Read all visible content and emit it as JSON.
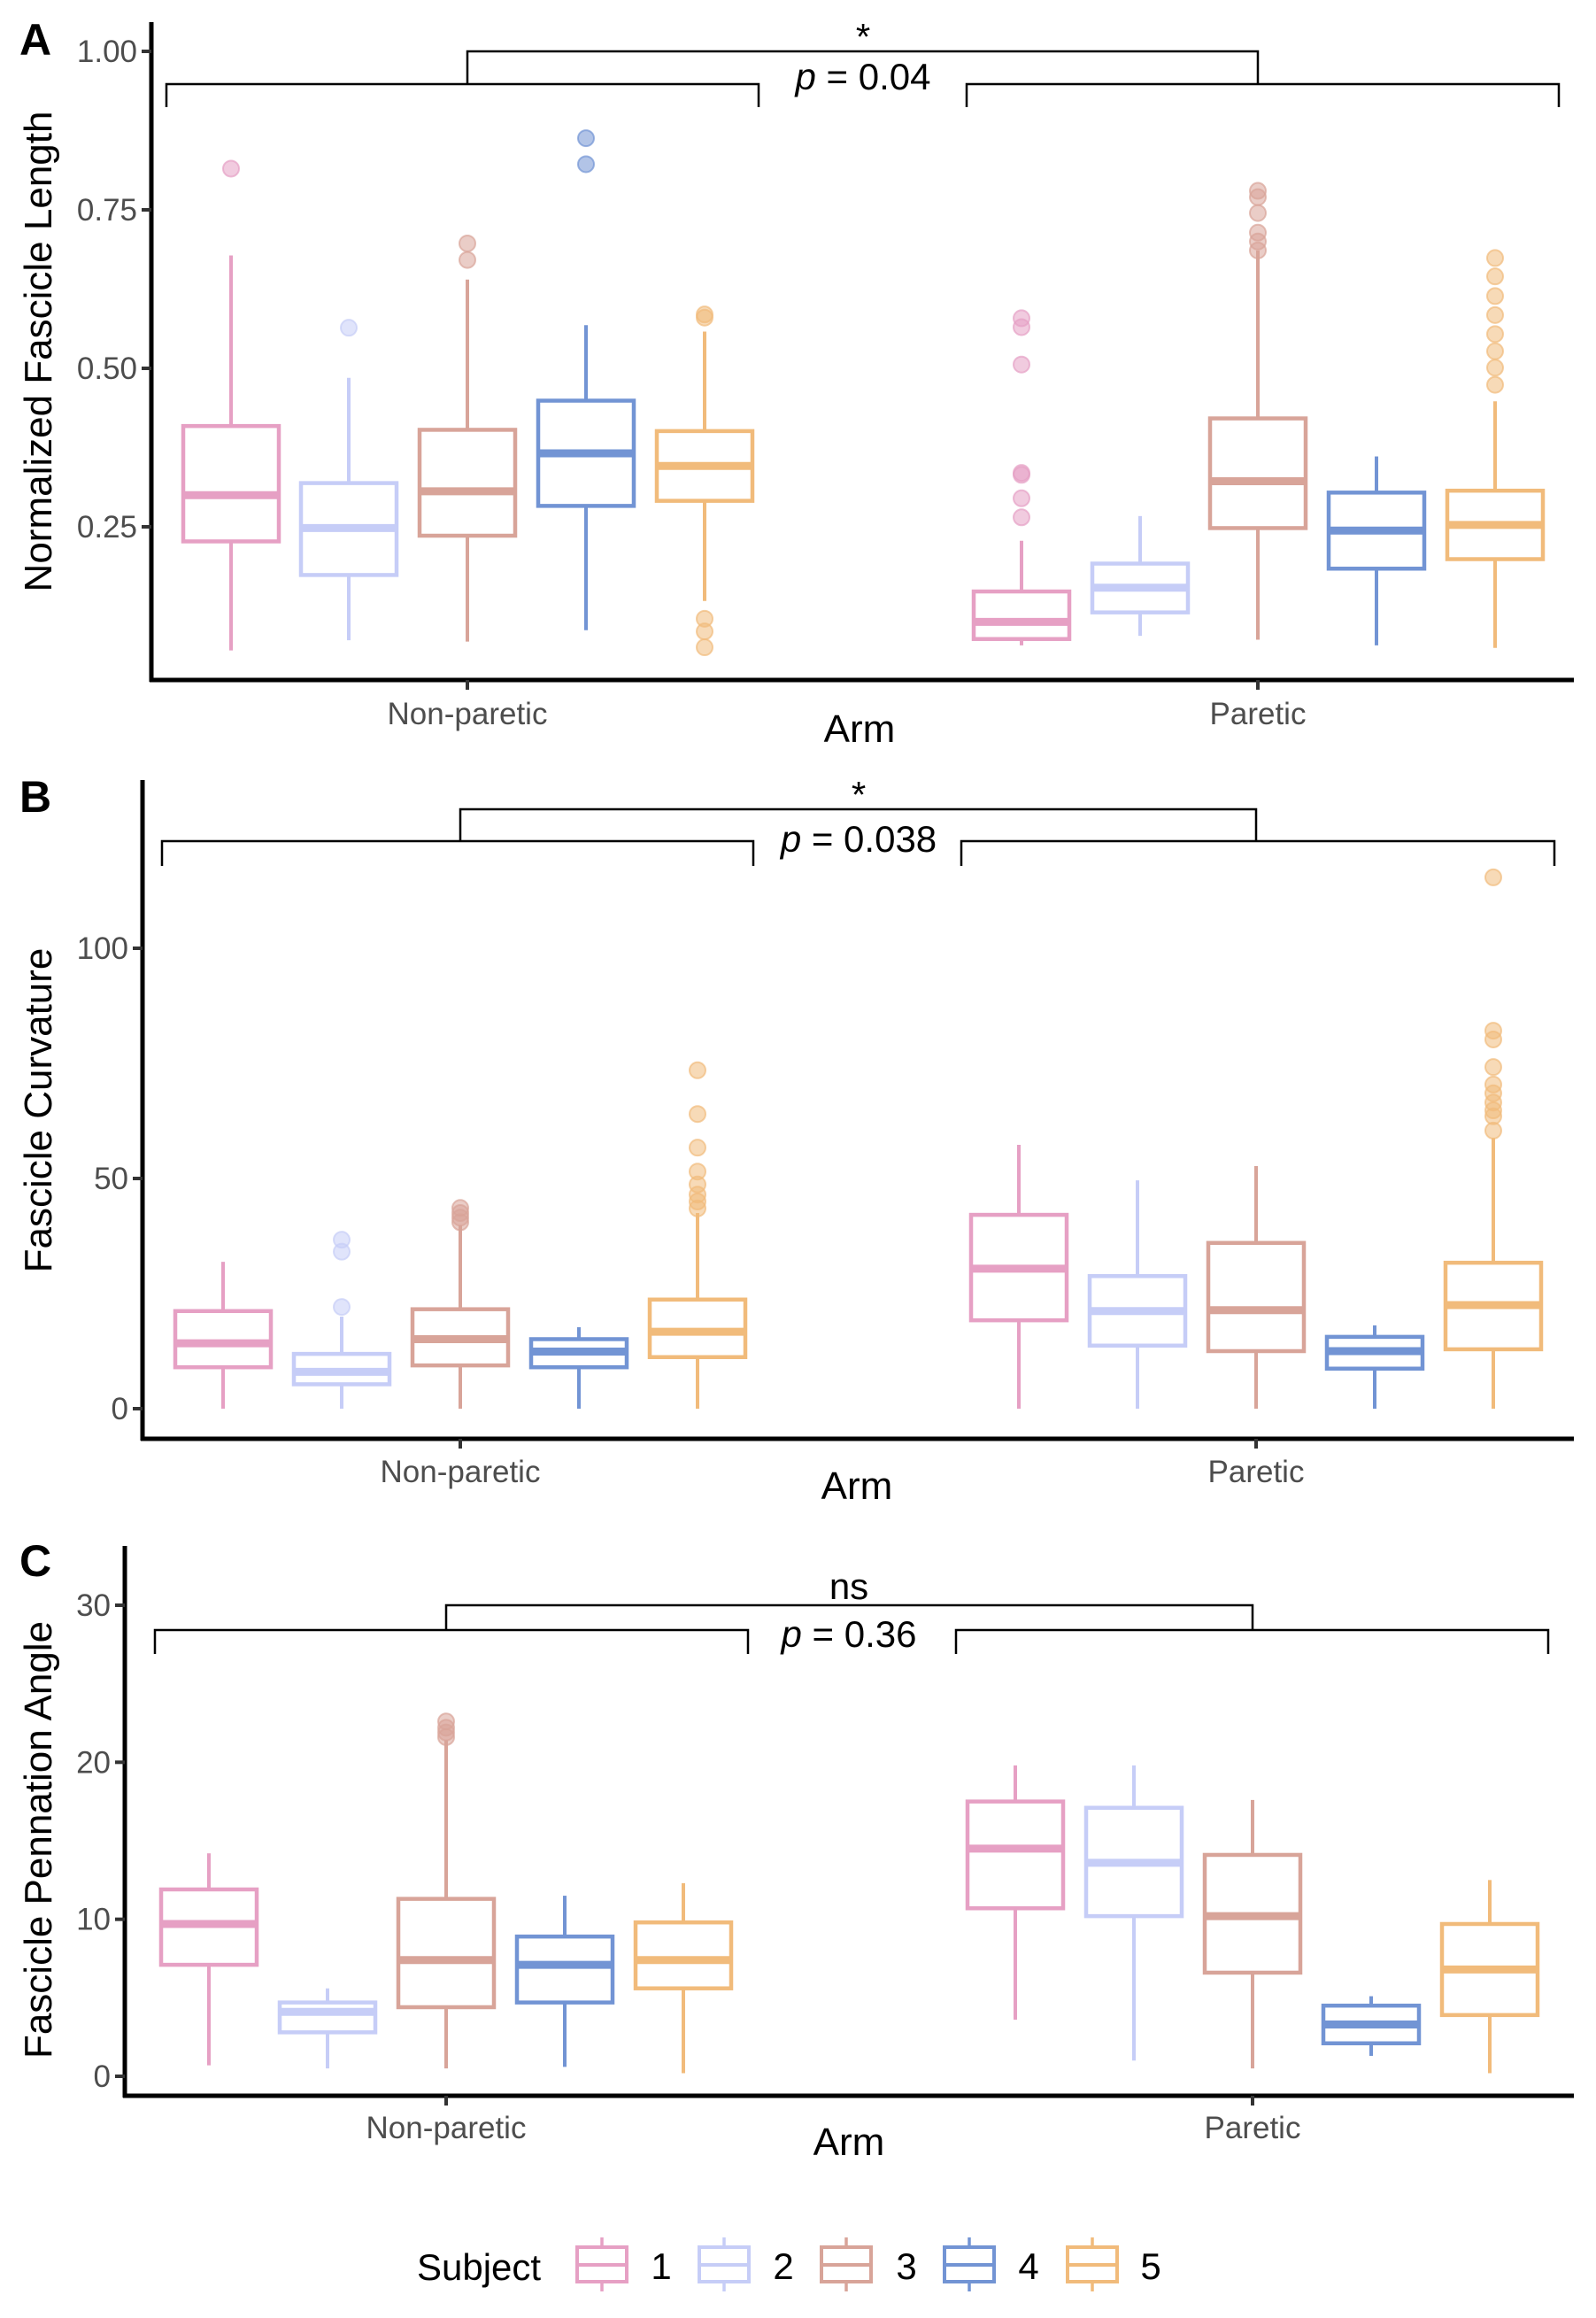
{
  "figure": {
    "legend": {
      "title": "Subject",
      "entries": [
        {
          "label": "1",
          "color": "#E6A0C4"
        },
        {
          "label": "2",
          "color": "#C6CDF7"
        },
        {
          "label": "3",
          "color": "#D8A499"
        },
        {
          "label": "4",
          "color": "#7294D4"
        },
        {
          "label": "5",
          "color": "#F1BB7B"
        }
      ]
    }
  },
  "chart_data": [
    {
      "panel": "A",
      "type": "boxplot",
      "title": "",
      "xlabel": "Arm",
      "ylabel": "Normalized Fascicle Length",
      "categories": [
        "Non-paretic",
        "Paretic"
      ],
      "yticks": [
        0.25,
        0.5,
        0.75,
        1.0
      ],
      "ytick_labels": [
        "0.25",
        "0.50",
        "0.75",
        "1.00"
      ],
      "ylim": [
        0.0,
        1.05
      ],
      "comparison": {
        "groups": [
          "Non-paretic",
          "Paretic"
        ],
        "significance": "*",
        "p_prefix": "p",
        "p_text": " = 0.04",
        "p_value": 0.04
      },
      "series": [
        {
          "name": "1",
          "groups": [
            {
              "category": "Non-paretic",
              "whisker_low": 0.055,
              "q1": 0.227,
              "median": 0.3,
              "q3": 0.409,
              "whisker_high": 0.678,
              "outliers": [
                0.815
              ]
            },
            {
              "category": "Paretic",
              "whisker_low": 0.063,
              "q1": 0.073,
              "median": 0.1,
              "q3": 0.148,
              "whisker_high": 0.228,
              "outliers": [
                0.265,
                0.295,
                0.332,
                0.335,
                0.506,
                0.565,
                0.579
              ]
            }
          ]
        },
        {
          "name": "2",
          "groups": [
            {
              "category": "Non-paretic",
              "whisker_low": 0.071,
              "q1": 0.174,
              "median": 0.248,
              "q3": 0.319,
              "whisker_high": 0.485,
              "outliers": [
                0.564
              ]
            },
            {
              "category": "Paretic",
              "whisker_low": 0.078,
              "q1": 0.115,
              "median": 0.154,
              "q3": 0.192,
              "whisker_high": 0.267,
              "outliers": []
            }
          ]
        },
        {
          "name": "3",
          "groups": [
            {
              "category": "Non-paretic",
              "whisker_low": 0.069,
              "q1": 0.236,
              "median": 0.306,
              "q3": 0.403,
              "whisker_high": 0.64,
              "outliers": [
                0.671,
                0.697
              ]
            },
            {
              "category": "Paretic",
              "whisker_low": 0.072,
              "q1": 0.248,
              "median": 0.322,
              "q3": 0.421,
              "whisker_high": 0.686,
              "outliers": [
                0.686,
                0.7,
                0.714,
                0.745,
                0.77,
                0.78
              ]
            }
          ]
        },
        {
          "name": "4",
          "groups": [
            {
              "category": "Non-paretic",
              "whisker_low": 0.087,
              "q1": 0.283,
              "median": 0.366,
              "q3": 0.449,
              "whisker_high": 0.568,
              "outliers": [
                0.822,
                0.863
              ]
            },
            {
              "category": "Paretic",
              "whisker_low": 0.063,
              "q1": 0.184,
              "median": 0.244,
              "q3": 0.304,
              "whisker_high": 0.361,
              "outliers": []
            }
          ]
        },
        {
          "name": "5",
          "groups": [
            {
              "category": "Non-paretic",
              "whisker_low": 0.133,
              "q1": 0.291,
              "median": 0.346,
              "q3": 0.401,
              "whisker_high": 0.558,
              "outliers": [
                0.06,
                0.085,
                0.105,
                0.58,
                0.585
              ]
            },
            {
              "category": "Paretic",
              "whisker_low": 0.059,
              "q1": 0.199,
              "median": 0.253,
              "q3": 0.307,
              "whisker_high": 0.448,
              "outliers": [
                0.474,
                0.501,
                0.527,
                0.554,
                0.584,
                0.614,
                0.645,
                0.674
              ]
            }
          ]
        }
      ]
    },
    {
      "panel": "B",
      "type": "boxplot",
      "title": "",
      "xlabel": "Arm",
      "ylabel": "Fascicle Curvature",
      "categories": [
        "Non-paretic",
        "Paretic"
      ],
      "yticks": [
        0,
        50,
        100
      ],
      "ytick_labels": [
        "0",
        "50",
        "100"
      ],
      "ylim": [
        -7,
        136
      ],
      "comparison": {
        "groups": [
          "Non-paretic",
          "Paretic"
        ],
        "significance": "*",
        "p_prefix": "p",
        "p_text": " = 0.038",
        "p_value": 0.038
      },
      "series": [
        {
          "name": "1",
          "groups": [
            {
              "category": "Non-paretic",
              "whisker_low": 0,
              "q1": 9.0,
              "median": 14.2,
              "q3": 21.2,
              "whisker_high": 31.9,
              "outliers": []
            },
            {
              "category": "Paretic",
              "whisker_low": 0,
              "q1": 19.2,
              "median": 30.4,
              "q3": 42.1,
              "whisker_high": 57.3,
              "outliers": []
            }
          ]
        },
        {
          "name": "2",
          "groups": [
            {
              "category": "Non-paretic",
              "whisker_low": 0,
              "q1": 5.3,
              "median": 8.0,
              "q3": 11.9,
              "whisker_high": 20.0,
              "outliers": [
                22.1,
                34.1,
                36.7
              ]
            },
            {
              "category": "Paretic",
              "whisker_low": 0,
              "q1": 13.7,
              "median": 21.2,
              "q3": 28.8,
              "whisker_high": 49.6,
              "outliers": []
            }
          ]
        },
        {
          "name": "3",
          "groups": [
            {
              "category": "Non-paretic",
              "whisker_low": 0,
              "q1": 9.4,
              "median": 15.1,
              "q3": 21.6,
              "whisker_high": 39.8,
              "outliers": [
                40.5,
                41.5,
                42.5,
                43.6
              ]
            },
            {
              "category": "Paretic",
              "whisker_low": 0,
              "q1": 12.5,
              "median": 21.4,
              "q3": 36.0,
              "whisker_high": 52.7,
              "outliers": []
            }
          ]
        },
        {
          "name": "4",
          "groups": [
            {
              "category": "Non-paretic",
              "whisker_low": 0,
              "q1": 9.0,
              "median": 12.4,
              "q3": 15.1,
              "whisker_high": 17.7,
              "outliers": []
            },
            {
              "category": "Paretic",
              "whisker_low": 0,
              "q1": 8.7,
              "median": 12.5,
              "q3": 15.6,
              "whisker_high": 18.1,
              "outliers": []
            }
          ]
        },
        {
          "name": "5",
          "groups": [
            {
              "category": "Non-paretic",
              "whisker_low": 0,
              "q1": 11.2,
              "median": 16.7,
              "q3": 23.7,
              "whisker_high": 42.5,
              "outliers": [
                43.5,
                45.0,
                46.5,
                48.7,
                51.5,
                56.7,
                64.0,
                73.5
              ]
            },
            {
              "category": "Paretic",
              "whisker_low": 0,
              "q1": 12.9,
              "median": 22.5,
              "q3": 31.7,
              "whisker_high": 58.8,
              "outliers": [
                60.4,
                63.5,
                64.8,
                66.5,
                68.5,
                70.4,
                74.2,
                80.2,
                82.1,
                115.4
              ]
            }
          ]
        }
      ]
    },
    {
      "panel": "C",
      "type": "boxplot",
      "title": "",
      "xlabel": "Arm",
      "ylabel": "Fascicle Pennation Angle",
      "categories": [
        "Non-paretic",
        "Paretic"
      ],
      "yticks": [
        0,
        10,
        20,
        30
      ],
      "ytick_labels": [
        "0",
        "10",
        "20",
        "30"
      ],
      "ylim": [
        -1.2,
        33.8
      ],
      "comparison": {
        "groups": [
          "Non-paretic",
          "Paretic"
        ],
        "significance": "ns",
        "p_prefix": "p",
        "p_text": " = 0.36",
        "p_value": 0.36
      },
      "series": [
        {
          "name": "1",
          "groups": [
            {
              "category": "Non-paretic",
              "whisker_low": 0.7,
              "q1": 7.1,
              "median": 9.7,
              "q3": 11.9,
              "whisker_high": 14.2,
              "outliers": []
            },
            {
              "category": "Paretic",
              "whisker_low": 3.6,
              "q1": 10.7,
              "median": 14.5,
              "q3": 17.5,
              "whisker_high": 19.8,
              "outliers": []
            }
          ]
        },
        {
          "name": "2",
          "groups": [
            {
              "category": "Non-paretic",
              "whisker_low": 0.5,
              "q1": 2.8,
              "median": 4.1,
              "q3": 4.7,
              "whisker_high": 5.6,
              "outliers": []
            },
            {
              "category": "Paretic",
              "whisker_low": 1.0,
              "q1": 10.2,
              "median": 13.6,
              "q3": 17.1,
              "whisker_high": 19.8,
              "outliers": []
            }
          ]
        },
        {
          "name": "3",
          "groups": [
            {
              "category": "Non-paretic",
              "whisker_low": 0.5,
              "q1": 4.4,
              "median": 7.4,
              "q3": 11.3,
              "whisker_high": 21.4,
              "outliers": [
                21.6,
                21.9,
                22.2,
                22.6
              ]
            },
            {
              "category": "Paretic",
              "whisker_low": 0.5,
              "q1": 6.6,
              "median": 10.2,
              "q3": 14.1,
              "whisker_high": 17.6,
              "outliers": []
            }
          ]
        },
        {
          "name": "4",
          "groups": [
            {
              "category": "Non-paretic",
              "whisker_low": 0.6,
              "q1": 4.7,
              "median": 7.1,
              "q3": 8.9,
              "whisker_high": 11.5,
              "outliers": []
            },
            {
              "category": "Paretic",
              "whisker_low": 1.3,
              "q1": 2.1,
              "median": 3.3,
              "q3": 4.5,
              "whisker_high": 5.1,
              "outliers": []
            }
          ]
        },
        {
          "name": "5",
          "groups": [
            {
              "category": "Non-paretic",
              "whisker_low": 0.2,
              "q1": 5.6,
              "median": 7.4,
              "q3": 9.8,
              "whisker_high": 12.3,
              "outliers": []
            },
            {
              "category": "Paretic",
              "whisker_low": 0.2,
              "q1": 3.9,
              "median": 6.8,
              "q3": 9.7,
              "whisker_high": 12.5,
              "outliers": []
            }
          ]
        }
      ]
    }
  ]
}
